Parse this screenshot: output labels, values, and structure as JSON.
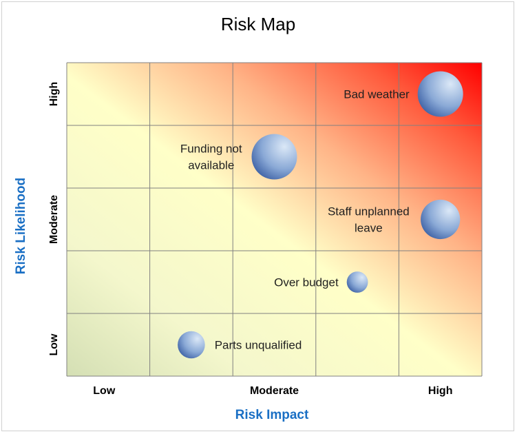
{
  "chart_data": {
    "type": "scatter",
    "title": "Risk Map",
    "xlabel": "Risk Impact",
    "ylabel": "Risk Likelihood",
    "xlim": [
      0,
      5
    ],
    "ylim": [
      0,
      5
    ],
    "x_ticks": [
      {
        "label": "Low",
        "value": 0.45
      },
      {
        "label": "Moderate",
        "value": 2.5
      },
      {
        "label": "High",
        "value": 4.5
      }
    ],
    "y_ticks": [
      {
        "label": "Low",
        "value": 0.5
      },
      {
        "label": "Moderate",
        "value": 2.5
      },
      {
        "label": "High",
        "value": 4.5
      }
    ],
    "grid": true,
    "background": "gradient from light green/yellow (low-low) to red (high-high)",
    "points": [
      {
        "label": "Bad weather",
        "x": 4.5,
        "y": 4.5,
        "size": 5
      },
      {
        "label": "Funding not available",
        "x": 2.5,
        "y": 3.5,
        "size": 5
      },
      {
        "label": "Staff unplanned leave",
        "x": 4.5,
        "y": 2.5,
        "size": 4
      },
      {
        "label": "Over budget",
        "x": 3.5,
        "y": 1.5,
        "size": 1
      },
      {
        "label": "Parts unqualified",
        "x": 1.5,
        "y": 0.5,
        "size": 2
      }
    ]
  },
  "colors": {
    "bubble_light": "#d6e6f7",
    "bubble_dark": "#3a5fa8",
    "corner_high": "#ff0000",
    "corner_low": "#d6e2b8",
    "mid_yellow": "#ffffc8",
    "grid": "#808080",
    "axis_title": "#1a6fc4"
  }
}
